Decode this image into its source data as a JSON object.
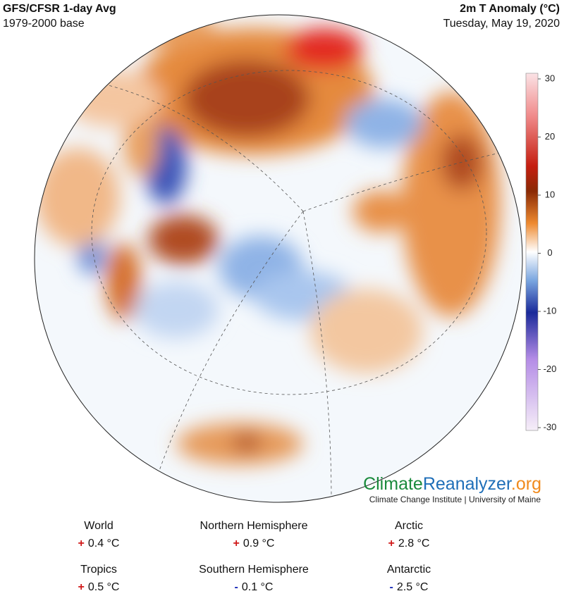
{
  "header": {
    "title": "GFS/CFSR 1-day Avg",
    "subtitle": "1979-2000 base",
    "variable": "2m T Anomaly (°C)",
    "date": "Tuesday, May 19, 2020"
  },
  "colorbar": {
    "lim": [
      -30,
      30
    ],
    "ticks": [
      30,
      20,
      10,
      0,
      -10,
      -20,
      -30
    ]
  },
  "logo": {
    "parts": [
      "Climate",
      "Reanalyzer",
      ".org"
    ],
    "caption": "Climate Change Institute | University of Maine"
  },
  "stats": [
    {
      "label": "World",
      "sign": "+",
      "value": "0.4 °C"
    },
    {
      "label": "Northern Hemisphere",
      "sign": "+",
      "value": "0.9 °C"
    },
    {
      "label": "Arctic",
      "sign": "+",
      "value": "2.8 °C"
    },
    {
      "label": "Tropics",
      "sign": "+",
      "value": "0.5 °C"
    },
    {
      "label": "Southern Hemisphere",
      "sign": "-",
      "value": "0.1 °C"
    },
    {
      "label": "Antarctic",
      "sign": "-",
      "value": "2.5 °C"
    }
  ]
}
